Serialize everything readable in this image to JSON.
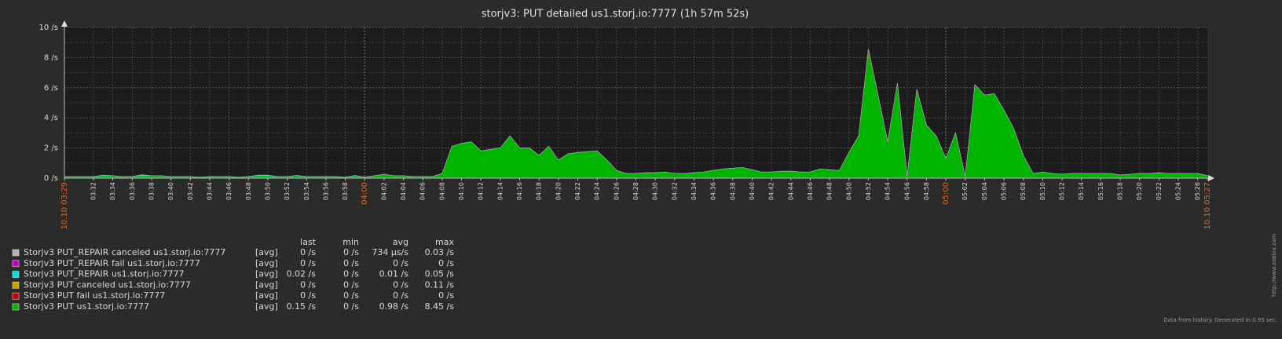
{
  "chart_data": {
    "type": "area",
    "stacked": true,
    "title": "storjv3: PUT detailed us1.storj.io:7777  (1h 57m 52s)",
    "x": [
      "03:29",
      "03:30",
      "03:31",
      "03:32",
      "03:33",
      "03:34",
      "03:35",
      "03:36",
      "03:37",
      "03:38",
      "03:39",
      "03:40",
      "03:41",
      "03:42",
      "03:43",
      "03:44",
      "03:45",
      "03:46",
      "03:47",
      "03:48",
      "03:49",
      "03:50",
      "03:51",
      "03:52",
      "03:53",
      "03:54",
      "03:55",
      "03:56",
      "03:57",
      "03:58",
      "03:59",
      "04:00",
      "04:01",
      "04:02",
      "04:03",
      "04:04",
      "04:05",
      "04:06",
      "04:07",
      "04:08",
      "04:09",
      "04:10",
      "04:11",
      "04:12",
      "04:13",
      "04:14",
      "04:15",
      "04:16",
      "04:17",
      "04:18",
      "04:19",
      "04:20",
      "04:21",
      "04:22",
      "04:23",
      "04:24",
      "04:25",
      "04:26",
      "04:27",
      "04:28",
      "04:29",
      "04:30",
      "04:31",
      "04:32",
      "04:33",
      "04:34",
      "04:35",
      "04:36",
      "04:37",
      "04:38",
      "04:39",
      "04:40",
      "04:41",
      "04:42",
      "04:43",
      "04:44",
      "04:45",
      "04:46",
      "04:47",
      "04:48",
      "04:49",
      "04:50",
      "04:51",
      "04:52",
      "04:53",
      "04:54",
      "04:55",
      "04:56",
      "04:57",
      "04:58",
      "04:59",
      "05:00",
      "05:01",
      "05:02",
      "05:03",
      "05:04",
      "05:05",
      "05:06",
      "05:07",
      "05:08",
      "05:09",
      "05:10",
      "05:11",
      "05:12",
      "05:13",
      "05:14",
      "05:15",
      "05:16",
      "05:17",
      "05:18",
      "05:19",
      "05:20",
      "05:21",
      "05:22",
      "05:23",
      "05:24",
      "05:25",
      "05:26",
      "05:27"
    ],
    "xticks": [
      {
        "value": "03:29",
        "label": "10.10 03:29"
      },
      "03:32",
      "03:34",
      "03:36",
      "03:38",
      "03:40",
      "03:42",
      "03:44",
      "03:46",
      "03:48",
      "03:50",
      "03:52",
      "03:54",
      "03:56",
      "03:58",
      "04:00",
      "04:02",
      "04:04",
      "04:06",
      "04:08",
      "04:10",
      "04:12",
      "04:14",
      "04:16",
      "04:18",
      "04:20",
      "04:22",
      "04:24",
      "04:26",
      "04:28",
      "04:30",
      "04:32",
      "04:34",
      "04:36",
      "04:38",
      "04:40",
      "04:42",
      "04:44",
      "04:46",
      "04:48",
      "04:50",
      "04:52",
      "04:54",
      "04:56",
      "04:58",
      "05:00",
      "05:02",
      "05:04",
      "05:06",
      "05:08",
      "05:10",
      "05:12",
      "05:14",
      "05:16",
      "05:18",
      "05:20",
      "05:22",
      "05:24",
      "05:26",
      {
        "value": "05:27",
        "label": "10.10 05:27"
      }
    ],
    "xtick_highlight": [
      "03:29",
      "04:00",
      "05:00",
      "05:27"
    ],
    "xtick_highlight_color": "#e8641b",
    "ylim": [
      0,
      10
    ],
    "yticks": [
      {
        "value": 0,
        "label": "0 /s"
      },
      {
        "value": 2,
        "label": "2 /s"
      },
      {
        "value": 4,
        "label": "4 /s"
      },
      {
        "value": 6,
        "label": "6 /s"
      },
      {
        "value": 8,
        "label": "8 /s"
      },
      {
        "value": 10,
        "label": "10 /s"
      }
    ],
    "minor_yticks": [
      1,
      3,
      5,
      7,
      9
    ],
    "grid": true,
    "legend_headers": [
      "last",
      "min",
      "avg",
      "max"
    ],
    "series": [
      {
        "name": "Storjv3 PUT_REPAIR canceled us1.storj.io:7777",
        "color": "#b0b0b0",
        "func": "[avg]",
        "stats": {
          "last": "0 /s",
          "min": "0 /s",
          "avg": "734 µs/s",
          "max": "0.03 /s"
        },
        "values": [
          0,
          0,
          0,
          0,
          0,
          0,
          0,
          0,
          0.03,
          0,
          0,
          0,
          0,
          0,
          0,
          0,
          0,
          0,
          0,
          0,
          0,
          0,
          0,
          0,
          0,
          0,
          0,
          0,
          0,
          0,
          0,
          0,
          0,
          0,
          0,
          0,
          0,
          0,
          0,
          0,
          0,
          0,
          0,
          0,
          0,
          0,
          0,
          0,
          0,
          0,
          0,
          0,
          0,
          0,
          0,
          0,
          0,
          0,
          0,
          0,
          0,
          0,
          0,
          0,
          0,
          0,
          0,
          0,
          0,
          0,
          0,
          0,
          0,
          0,
          0,
          0,
          0,
          0,
          0,
          0,
          0,
          0,
          0,
          0,
          0,
          0,
          0,
          0,
          0,
          0,
          0,
          0,
          0,
          0,
          0,
          0,
          0,
          0,
          0,
          0,
          0,
          0,
          0,
          0,
          0,
          0,
          0,
          0,
          0,
          0,
          0,
          0,
          0,
          0,
          0,
          0,
          0,
          0,
          0
        ]
      },
      {
        "name": "Storjv3 PUT_REPAIR fail us1.storj.io:7777",
        "color": "#c000c0",
        "func": "[avg]",
        "stats": {
          "last": "0 /s",
          "min": "0 /s",
          "avg": "0 /s",
          "max": "0 /s"
        },
        "values": [
          0,
          0,
          0,
          0,
          0,
          0,
          0,
          0,
          0,
          0,
          0,
          0,
          0,
          0,
          0,
          0,
          0,
          0,
          0,
          0,
          0,
          0,
          0,
          0,
          0,
          0,
          0,
          0,
          0,
          0,
          0,
          0,
          0,
          0,
          0,
          0,
          0,
          0,
          0,
          0,
          0,
          0,
          0,
          0,
          0,
          0,
          0,
          0,
          0,
          0,
          0,
          0,
          0,
          0,
          0,
          0,
          0,
          0,
          0,
          0,
          0,
          0,
          0,
          0,
          0,
          0,
          0,
          0,
          0,
          0,
          0,
          0,
          0,
          0,
          0,
          0,
          0,
          0,
          0,
          0,
          0,
          0,
          0,
          0,
          0,
          0,
          0,
          0,
          0,
          0,
          0,
          0,
          0,
          0,
          0,
          0,
          0,
          0,
          0,
          0,
          0,
          0,
          0,
          0,
          0,
          0,
          0,
          0,
          0,
          0,
          0,
          0,
          0,
          0,
          0,
          0,
          0,
          0,
          0
        ]
      },
      {
        "name": "Storjv3 PUT_REPAIR us1.storj.io:7777",
        "color": "#00e0e0",
        "func": "[avg]",
        "stats": {
          "last": "0.02 /s",
          "min": "0 /s",
          "avg": "0.01 /s",
          "max": "0.05 /s"
        },
        "values": [
          0.01,
          0.01,
          0.01,
          0.01,
          0.05,
          0.01,
          0.01,
          0.01,
          0.05,
          0.01,
          0.01,
          0.01,
          0.01,
          0.01,
          0.01,
          0.01,
          0.01,
          0.01,
          0.01,
          0.01,
          0.05,
          0.05,
          0.01,
          0.01,
          0.03,
          0.01,
          0.01,
          0.01,
          0.01,
          0.01,
          0.03,
          0.01,
          0.01,
          0.01,
          0.01,
          0.01,
          0.01,
          0.01,
          0.01,
          0.01,
          0.01,
          0.01,
          0.01,
          0.01,
          0.01,
          0.01,
          0.01,
          0.01,
          0.01,
          0.01,
          0.01,
          0.01,
          0.01,
          0.01,
          0.01,
          0.01,
          0.01,
          0.01,
          0.01,
          0.01,
          0.01,
          0.01,
          0.01,
          0.01,
          0.01,
          0.01,
          0.01,
          0.01,
          0.01,
          0.01,
          0.01,
          0.01,
          0.01,
          0.01,
          0.01,
          0.01,
          0.01,
          0.01,
          0.01,
          0.01,
          0.01,
          0.01,
          0.01,
          0.01,
          0.01,
          0.01,
          0.01,
          0.01,
          0.01,
          0.01,
          0.01,
          0.01,
          0.01,
          0.01,
          0.01,
          0.01,
          0.01,
          0.01,
          0.01,
          0.01,
          0.01,
          0.01,
          0.01,
          0.01,
          0.01,
          0.01,
          0.01,
          0.01,
          0.01,
          0.01,
          0.01,
          0.01,
          0.01,
          0.01,
          0.01,
          0.01,
          0.01,
          0.01,
          0.02
        ]
      },
      {
        "name": "Storjv3 PUT canceled us1.storj.io:7777",
        "color": "#c8a000",
        "func": "[avg]",
        "stats": {
          "last": "0 /s",
          "min": "0 /s",
          "avg": "0 /s",
          "max": "0.11 /s"
        },
        "values": [
          0,
          0,
          0,
          0,
          0,
          0,
          0,
          0,
          0,
          0,
          0,
          0,
          0,
          0,
          0,
          0,
          0,
          0,
          0,
          0,
          0,
          0,
          0,
          0,
          0,
          0,
          0,
          0,
          0,
          0,
          0,
          0,
          0,
          0,
          0,
          0,
          0,
          0,
          0,
          0,
          0,
          0,
          0,
          0,
          0,
          0,
          0,
          0,
          0,
          0,
          0,
          0,
          0,
          0,
          0,
          0,
          0,
          0,
          0,
          0,
          0,
          0,
          0,
          0,
          0,
          0,
          0,
          0,
          0,
          0,
          0,
          0,
          0,
          0,
          0,
          0,
          0,
          0,
          0,
          0,
          0,
          0,
          0,
          0.11,
          0,
          0,
          0,
          0,
          0,
          0,
          0,
          0,
          0,
          0,
          0,
          0,
          0,
          0,
          0,
          0,
          0,
          0,
          0,
          0,
          0,
          0,
          0,
          0,
          0,
          0,
          0,
          0,
          0,
          0,
          0,
          0,
          0,
          0,
          0
        ]
      },
      {
        "name": "Storjv3 PUT fail us1.storj.io:7777",
        "color": "#c00000",
        "func": "[avg]",
        "stats": {
          "last": "0 /s",
          "min": "0 /s",
          "avg": "0 /s",
          "max": "0 /s"
        },
        "values": [
          0,
          0,
          0,
          0,
          0,
          0,
          0,
          0,
          0,
          0,
          0,
          0,
          0,
          0,
          0,
          0,
          0,
          0,
          0,
          0,
          0,
          0,
          0,
          0,
          0,
          0,
          0,
          0,
          0,
          0,
          0,
          0,
          0,
          0,
          0,
          0,
          0,
          0,
          0,
          0,
          0,
          0,
          0,
          0,
          0,
          0,
          0,
          0,
          0,
          0,
          0,
          0,
          0,
          0,
          0,
          0,
          0,
          0,
          0,
          0,
          0,
          0,
          0,
          0,
          0,
          0,
          0,
          0,
          0,
          0,
          0,
          0,
          0,
          0,
          0,
          0,
          0,
          0,
          0,
          0,
          0,
          0,
          0,
          0,
          0,
          0,
          0,
          0,
          0,
          0,
          0,
          0,
          0,
          0,
          0,
          0,
          0,
          0,
          0,
          0,
          0,
          0,
          0,
          0,
          0,
          0,
          0,
          0,
          0,
          0,
          0,
          0,
          0,
          0,
          0,
          0,
          0,
          0,
          0
        ]
      },
      {
        "name": "Storjv3 PUT us1.storj.io:7777",
        "color": "#00b400",
        "func": "[avg]",
        "stats": {
          "last": "0.15 /s",
          "min": "0 /s",
          "avg": "0.98 /s",
          "max": "8.45 /s"
        },
        "values": [
          0.1,
          0.1,
          0.1,
          0.1,
          0.15,
          0.15,
          0.1,
          0.1,
          0.15,
          0.15,
          0.15,
          0.1,
          0.1,
          0.1,
          0.05,
          0.1,
          0.1,
          0.1,
          0.05,
          0.1,
          0.15,
          0.15,
          0.1,
          0.1,
          0.15,
          0.1,
          0.1,
          0.1,
          0.1,
          0.05,
          0.15,
          0.05,
          0.15,
          0.25,
          0.15,
          0.15,
          0.1,
          0.1,
          0.1,
          0.3,
          2.1,
          2.3,
          2.4,
          1.8,
          1.9,
          2.0,
          2.8,
          2.0,
          2.0,
          1.5,
          2.1,
          1.2,
          1.6,
          1.7,
          1.75,
          1.8,
          1.2,
          0.5,
          0.3,
          0.3,
          0.35,
          0.35,
          0.4,
          0.3,
          0.3,
          0.35,
          0.4,
          0.5,
          0.6,
          0.65,
          0.7,
          0.55,
          0.4,
          0.4,
          0.45,
          0.45,
          0.4,
          0.4,
          0.6,
          0.55,
          0.5,
          1.7,
          2.8,
          8.45,
          5.5,
          2.4,
          6.3,
          0.1,
          5.9,
          3.5,
          2.8,
          1.3,
          3.0,
          0.1,
          6.2,
          5.5,
          5.6,
          4.5,
          3.3,
          1.5,
          0.3,
          0.4,
          0.3,
          0.25,
          0.3,
          0.3,
          0.3,
          0.3,
          0.3,
          0.2,
          0.25,
          0.3,
          0.3,
          0.35,
          0.3,
          0.3,
          0.3,
          0.3,
          0.15
        ]
      }
    ],
    "side_note": "http://www.zabbix.com",
    "footer": "Data from history. Generated in 0.95 sec."
  }
}
